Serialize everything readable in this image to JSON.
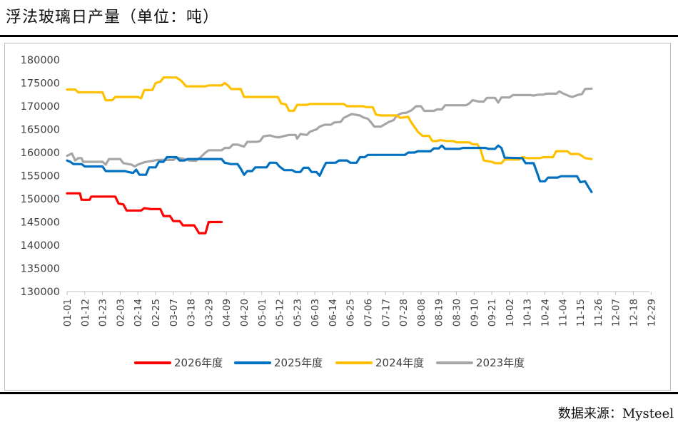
{
  "title": "浮法玻璃日产量（单位：吨）",
  "source": "数据来源：Mysteel",
  "chart_data": {
    "type": "line",
    "title": "浮法玻璃日产量（单位：吨）",
    "xlabel": "",
    "ylabel": "",
    "ylim": [
      130000,
      180000
    ],
    "yticks": [
      130000,
      135000,
      140000,
      145000,
      150000,
      155000,
      160000,
      165000,
      170000,
      175000,
      180000
    ],
    "x_tick_labels": [
      "01-01",
      "01-12",
      "01-23",
      "02-03",
      "02-14",
      "02-25",
      "03-07",
      "03-18",
      "03-29",
      "04-09",
      "04-20",
      "05-01",
      "05-12",
      "05-23",
      "06-03",
      "06-14",
      "06-25",
      "07-06",
      "07-17",
      "07-28",
      "08-08",
      "08-19",
      "08-30",
      "09-10",
      "09-21",
      "10-02",
      "10-13",
      "10-24",
      "11-04",
      "11-15",
      "11-26",
      "12-07",
      "12-18",
      "12-29"
    ],
    "legend_position": "bottom",
    "series": [
      {
        "name": "2026年度",
        "color": "#ff0000",
        "points": [
          [
            0,
            151200
          ],
          [
            8,
            151200
          ],
          [
            9,
            149800
          ],
          [
            14,
            149800
          ],
          [
            15,
            150500
          ],
          [
            30,
            150500
          ],
          [
            32,
            149000
          ],
          [
            35,
            148800
          ],
          [
            37,
            147500
          ],
          [
            46,
            147500
          ],
          [
            48,
            148000
          ],
          [
            52,
            147800
          ],
          [
            58,
            147800
          ],
          [
            60,
            146300
          ],
          [
            64,
            146300
          ],
          [
            66,
            145200
          ],
          [
            70,
            145200
          ],
          [
            72,
            144300
          ],
          [
            79,
            144300
          ],
          [
            81,
            143200
          ],
          [
            82,
            142600
          ],
          [
            86,
            142600
          ],
          [
            88,
            145000
          ],
          [
            96,
            145000
          ]
        ]
      },
      {
        "name": "2025年度",
        "color": "#0070c0",
        "points": [
          [
            0,
            158300
          ],
          [
            2,
            158000
          ],
          [
            4,
            157500
          ],
          [
            9,
            157500
          ],
          [
            11,
            157000
          ],
          [
            22,
            157000
          ],
          [
            24,
            156000
          ],
          [
            36,
            156000
          ],
          [
            38,
            155800
          ],
          [
            41,
            155600
          ],
          [
            43,
            156300
          ],
          [
            45,
            155200
          ],
          [
            49,
            155200
          ],
          [
            51,
            156800
          ],
          [
            55,
            156800
          ],
          [
            57,
            158000
          ],
          [
            60,
            158000
          ],
          [
            62,
            159000
          ],
          [
            68,
            159000
          ],
          [
            70,
            158300
          ],
          [
            73,
            158300
          ],
          [
            75,
            158600
          ],
          [
            86,
            158600
          ],
          [
            88,
            158600
          ],
          [
            96,
            158600
          ],
          [
            98,
            157800
          ],
          [
            102,
            157500
          ],
          [
            106,
            157500
          ],
          [
            108,
            156500
          ],
          [
            110,
            155200
          ],
          [
            112,
            156000
          ],
          [
            115,
            156000
          ],
          [
            117,
            156800
          ],
          [
            124,
            156800
          ],
          [
            126,
            157800
          ],
          [
            130,
            157800
          ],
          [
            132,
            157000
          ],
          [
            135,
            156200
          ],
          [
            140,
            156200
          ],
          [
            142,
            155800
          ],
          [
            145,
            155800
          ],
          [
            147,
            156700
          ],
          [
            150,
            156700
          ],
          [
            152,
            155800
          ],
          [
            155,
            155800
          ],
          [
            157,
            155000
          ],
          [
            159,
            156500
          ],
          [
            161,
            157800
          ],
          [
            167,
            157800
          ],
          [
            169,
            158300
          ],
          [
            174,
            158300
          ],
          [
            176,
            157800
          ],
          [
            180,
            157800
          ],
          [
            182,
            159000
          ],
          [
            185,
            159000
          ],
          [
            187,
            159500
          ],
          [
            210,
            159500
          ],
          [
            212,
            160000
          ],
          [
            216,
            160000
          ],
          [
            218,
            160300
          ],
          [
            226,
            160300
          ],
          [
            228,
            160900
          ],
          [
            231,
            160900
          ],
          [
            233,
            161500
          ],
          [
            235,
            160800
          ],
          [
            244,
            160800
          ],
          [
            246,
            161000
          ],
          [
            260,
            161000
          ],
          [
            262,
            160800
          ],
          [
            266,
            160800
          ],
          [
            268,
            161500
          ],
          [
            270,
            161000
          ],
          [
            272,
            158900
          ],
          [
            283,
            158800
          ],
          [
            285,
            157700
          ],
          [
            290,
            157700
          ],
          [
            292,
            155800
          ],
          [
            294,
            153800
          ],
          [
            297,
            153800
          ],
          [
            299,
            154600
          ],
          [
            305,
            154600
          ],
          [
            307,
            154900
          ],
          [
            317,
            154900
          ],
          [
            319,
            153600
          ],
          [
            322,
            153800
          ],
          [
            324,
            152600
          ],
          [
            326,
            151500
          ]
        ]
      },
      {
        "name": "2024年度",
        "color": "#ffc000",
        "points": [
          [
            0,
            173600
          ],
          [
            5,
            173600
          ],
          [
            7,
            173000
          ],
          [
            22,
            173000
          ],
          [
            24,
            171300
          ],
          [
            28,
            171300
          ],
          [
            30,
            172000
          ],
          [
            44,
            172000
          ],
          [
            46,
            171700
          ],
          [
            48,
            173500
          ],
          [
            53,
            173500
          ],
          [
            55,
            175000
          ],
          [
            58,
            175300
          ],
          [
            60,
            176200
          ],
          [
            68,
            176200
          ],
          [
            71,
            175500
          ],
          [
            74,
            174300
          ],
          [
            86,
            174300
          ],
          [
            88,
            174500
          ],
          [
            96,
            174500
          ],
          [
            98,
            175000
          ],
          [
            100,
            174500
          ],
          [
            102,
            173700
          ],
          [
            108,
            173700
          ],
          [
            110,
            172000
          ],
          [
            118,
            172000
          ],
          [
            120,
            172000
          ],
          [
            131,
            172000
          ],
          [
            133,
            170600
          ],
          [
            136,
            170400
          ],
          [
            138,
            169000
          ],
          [
            141,
            169000
          ],
          [
            143,
            170300
          ],
          [
            149,
            170300
          ],
          [
            151,
            170500
          ],
          [
            172,
            170500
          ],
          [
            174,
            170000
          ],
          [
            184,
            170000
          ],
          [
            186,
            169800
          ],
          [
            190,
            169800
          ],
          [
            192,
            168200
          ],
          [
            195,
            168000
          ],
          [
            205,
            168000
          ],
          [
            207,
            167500
          ],
          [
            212,
            167700
          ],
          [
            214,
            166500
          ],
          [
            218,
            164500
          ],
          [
            221,
            163600
          ],
          [
            225,
            163600
          ],
          [
            227,
            162500
          ],
          [
            230,
            162500
          ],
          [
            232,
            162700
          ],
          [
            236,
            162500
          ],
          [
            240,
            162500
          ],
          [
            242,
            162200
          ],
          [
            250,
            162200
          ],
          [
            252,
            161800
          ],
          [
            255,
            161800
          ],
          [
            257,
            160700
          ],
          [
            259,
            158300
          ],
          [
            264,
            158000
          ],
          [
            266,
            157700
          ],
          [
            270,
            157700
          ],
          [
            272,
            158500
          ],
          [
            281,
            158500
          ],
          [
            283,
            159000
          ],
          [
            286,
            158800
          ],
          [
            294,
            158800
          ],
          [
            296,
            159000
          ],
          [
            302,
            159000
          ],
          [
            304,
            160300
          ],
          [
            311,
            160300
          ],
          [
            313,
            159700
          ],
          [
            318,
            159700
          ],
          [
            320,
            159300
          ],
          [
            322,
            158800
          ],
          [
            326,
            158600
          ]
        ]
      },
      {
        "name": "2023年度",
        "color": "#a6a6a6",
        "points": [
          [
            0,
            159300
          ],
          [
            3,
            159800
          ],
          [
            5,
            158300
          ],
          [
            7,
            158800
          ],
          [
            9,
            158800
          ],
          [
            10,
            158000
          ],
          [
            22,
            158000
          ],
          [
            24,
            157400
          ],
          [
            26,
            158600
          ],
          [
            33,
            158600
          ],
          [
            35,
            157700
          ],
          [
            40,
            157400
          ],
          [
            42,
            157000
          ],
          [
            44,
            157400
          ],
          [
            48,
            157900
          ],
          [
            53,
            158200
          ],
          [
            56,
            158400
          ],
          [
            66,
            158400
          ],
          [
            68,
            158900
          ],
          [
            72,
            158700
          ],
          [
            76,
            158300
          ],
          [
            80,
            158200
          ],
          [
            83,
            159000
          ],
          [
            86,
            160000
          ],
          [
            88,
            160500
          ],
          [
            96,
            160500
          ],
          [
            98,
            161000
          ],
          [
            101,
            161000
          ],
          [
            103,
            161700
          ],
          [
            106,
            161700
          ],
          [
            108,
            161500
          ],
          [
            110,
            161300
          ],
          [
            112,
            162300
          ],
          [
            118,
            162300
          ],
          [
            120,
            162500
          ],
          [
            122,
            163500
          ],
          [
            126,
            163700
          ],
          [
            130,
            163300
          ],
          [
            132,
            163300
          ],
          [
            134,
            163500
          ],
          [
            138,
            163800
          ],
          [
            142,
            163800
          ],
          [
            143,
            163000
          ],
          [
            145,
            164000
          ],
          [
            149,
            163800
          ],
          [
            151,
            164500
          ],
          [
            155,
            165000
          ],
          [
            157,
            165600
          ],
          [
            160,
            166000
          ],
          [
            164,
            166000
          ],
          [
            166,
            166500
          ],
          [
            170,
            166600
          ],
          [
            172,
            167500
          ],
          [
            175,
            168000
          ],
          [
            177,
            168300
          ],
          [
            182,
            168000
          ],
          [
            184,
            167600
          ],
          [
            187,
            167300
          ],
          [
            189,
            166500
          ],
          [
            191,
            165600
          ],
          [
            195,
            165600
          ],
          [
            197,
            166000
          ],
          [
            200,
            166600
          ],
          [
            203,
            167000
          ],
          [
            205,
            168000
          ],
          [
            208,
            168500
          ],
          [
            211,
            168600
          ],
          [
            214,
            169100
          ],
          [
            217,
            170000
          ],
          [
            220,
            170000
          ],
          [
            222,
            169000
          ],
          [
            228,
            169000
          ],
          [
            230,
            169300
          ],
          [
            233,
            169300
          ],
          [
            235,
            170200
          ],
          [
            248,
            170200
          ],
          [
            250,
            170600
          ],
          [
            252,
            171300
          ],
          [
            256,
            171000
          ],
          [
            259,
            171000
          ],
          [
            261,
            171800
          ],
          [
            266,
            171800
          ],
          [
            268,
            170800
          ],
          [
            270,
            171900
          ],
          [
            275,
            171900
          ],
          [
            277,
            172400
          ],
          [
            288,
            172400
          ],
          [
            290,
            172300
          ],
          [
            293,
            172500
          ],
          [
            296,
            172500
          ],
          [
            298,
            172700
          ],
          [
            304,
            172700
          ],
          [
            306,
            173200
          ],
          [
            308,
            172800
          ],
          [
            312,
            172200
          ],
          [
            314,
            172000
          ],
          [
            318,
            172500
          ],
          [
            320,
            172600
          ],
          [
            322,
            173700
          ],
          [
            326,
            173800
          ]
        ]
      }
    ]
  }
}
